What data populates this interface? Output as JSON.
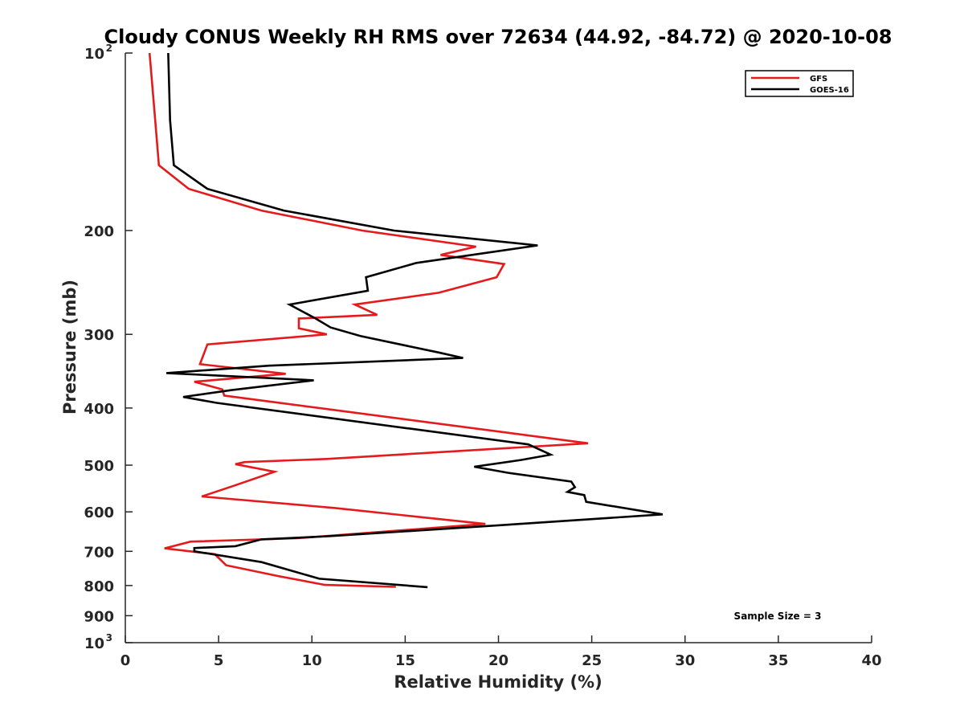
{
  "chart_data": {
    "type": "line",
    "title": "Cloudy CONUS Weekly RH RMS over 72634 (44.92, -84.72) @ 2020-10-08",
    "xlabel": "Relative Humidity (%)",
    "ylabel": "Pressure (mb)",
    "xlim": [
      0,
      40
    ],
    "ylim": [
      100,
      1000
    ],
    "yscale": "log",
    "y_reversed": true,
    "grid": false,
    "legend_position": "top-right",
    "x_ticks": [
      "0",
      "5",
      "10",
      "15",
      "20",
      "25",
      "30",
      "35",
      "40"
    ],
    "y_ticks": [
      {
        "value": 100,
        "base": "10",
        "exp": "2"
      },
      {
        "value": 200,
        "label": "200"
      },
      {
        "value": 300,
        "label": "300"
      },
      {
        "value": 400,
        "label": "400"
      },
      {
        "value": 500,
        "label": "500"
      },
      {
        "value": 600,
        "label": "600"
      },
      {
        "value": 700,
        "label": "700"
      },
      {
        "value": 800,
        "label": "800"
      },
      {
        "value": 900,
        "label": "900"
      },
      {
        "value": 1000,
        "base": "10",
        "exp": "3"
      }
    ],
    "series": [
      {
        "name": "GFS",
        "color": "#e41a1c",
        "x": [
          1.3,
          1.6,
          1.8,
          3.4,
          7.3,
          12.7,
          18.8,
          16.9,
          20.3,
          19.9,
          16.8,
          12.3,
          13.5,
          9.3,
          9.3,
          10.8,
          4.4,
          4.0,
          8.6,
          3.7,
          5.2,
          5.3,
          24.8,
          10.8,
          6.4,
          5.9,
          8.0,
          5.8,
          4.1,
          11.2,
          19.3,
          9.2,
          3.5,
          2.1,
          4.8,
          5.4,
          8.2,
          10.7,
          14.5
        ],
        "y": [
          100,
          130,
          155,
          170,
          185,
          200,
          213,
          220,
          228,
          240,
          255,
          267,
          278,
          282,
          293,
          300,
          312,
          337,
          350,
          361,
          372,
          381,
          459,
          488,
          494,
          498,
          513,
          542,
          565,
          591,
          629,
          665,
          674,
          692,
          708,
          739,
          771,
          798,
          804
        ]
      },
      {
        "name": "GOES-16",
        "color": "#000000",
        "x": [
          2.3,
          2.4,
          2.6,
          4.4,
          8.5,
          14.4,
          22.1,
          15.6,
          12.9,
          13.0,
          8.8,
          10.2,
          11.0,
          12.6,
          16.8,
          18.1,
          7.7,
          2.2,
          10.1,
          5.7,
          3.1,
          4.9,
          21.6,
          22.8,
          21.2,
          18.7,
          20.5,
          23.9,
          24.1,
          23.7,
          24.6,
          24.7,
          28.8,
          20.8,
          10.9,
          7.3,
          5.9,
          3.7,
          3.7,
          7.3,
          10.4,
          16.2
        ],
        "y": [
          100,
          130,
          155,
          170,
          185,
          200,
          212,
          227,
          240,
          253,
          267,
          282,
          292,
          302,
          322,
          329,
          339,
          349,
          359,
          373,
          383,
          392,
          461,
          480,
          490,
          503,
          515,
          533,
          545,
          555,
          562,
          577,
          606,
          630,
          660,
          668,
          686,
          691,
          700,
          730,
          779,
          805
        ]
      }
    ],
    "legend": [
      "GFS",
      "GOES-16"
    ],
    "annotation": "Sample Size = 3"
  }
}
